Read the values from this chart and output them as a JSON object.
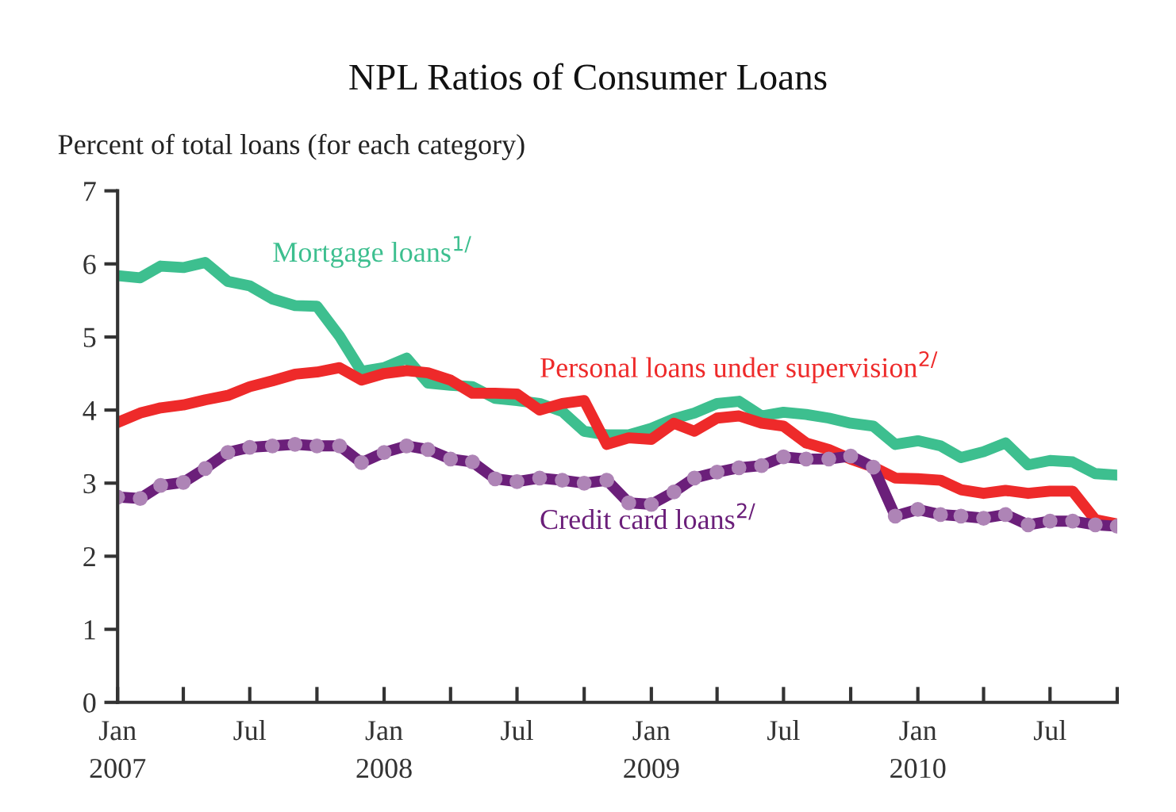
{
  "chart_data": {
    "type": "line",
    "title": "NPL Ratios of Consumer Loans",
    "ylabel": "Percent of total loans (for each category)",
    "x": [
      "2007-01",
      "2007-02",
      "2007-03",
      "2007-04",
      "2007-05",
      "2007-06",
      "2007-07",
      "2007-08",
      "2007-09",
      "2007-10",
      "2007-11",
      "2007-12",
      "2008-01",
      "2008-02",
      "2008-03",
      "2008-04",
      "2008-05",
      "2008-06",
      "2008-07",
      "2008-08",
      "2008-09",
      "2008-10",
      "2008-11",
      "2008-12",
      "2009-01",
      "2009-02",
      "2009-03",
      "2009-04",
      "2009-05",
      "2009-06",
      "2009-07",
      "2009-08",
      "2009-09",
      "2009-10",
      "2009-11",
      "2009-12",
      "2010-01",
      "2010-02",
      "2010-03",
      "2010-04",
      "2010-05",
      "2010-06",
      "2010-07",
      "2010-08",
      "2010-09",
      "2010-10"
    ],
    "series": [
      {
        "name": "Mortgage loans$^{1/}$",
        "color": "#3dbf8f",
        "marker": "none",
        "values": [
          5.84,
          5.81,
          5.97,
          5.95,
          6.02,
          5.76,
          5.7,
          5.52,
          5.43,
          5.42,
          5.01,
          4.53,
          4.58,
          4.71,
          4.37,
          4.34,
          4.32,
          4.16,
          4.13,
          4.09,
          3.98,
          3.71,
          3.66,
          3.66,
          3.75,
          3.88,
          3.96,
          4.09,
          4.12,
          3.92,
          3.97,
          3.94,
          3.89,
          3.82,
          3.78,
          3.53,
          3.58,
          3.51,
          3.35,
          3.43,
          3.55,
          3.25,
          3.31,
          3.29,
          3.13,
          3.11
        ]
      },
      {
        "name": "Personal loans under supervision$^{2/}$",
        "color": "#ee2a2a",
        "marker": "none",
        "values": [
          3.83,
          3.96,
          4.03,
          4.07,
          4.14,
          4.2,
          4.32,
          4.4,
          4.49,
          4.52,
          4.58,
          4.41,
          4.5,
          4.54,
          4.51,
          4.41,
          4.23,
          4.23,
          4.22,
          4.0,
          4.09,
          4.13,
          3.53,
          3.62,
          3.6,
          3.82,
          3.71,
          3.89,
          3.92,
          3.82,
          3.78,
          3.55,
          3.46,
          3.33,
          3.22,
          3.07,
          3.06,
          3.04,
          2.91,
          2.86,
          2.9,
          2.86,
          2.89,
          2.89,
          2.5,
          2.44
        ]
      },
      {
        "name": "Credit card loans$^{2/}$",
        "color": "#6b1f7a",
        "marker": "circle",
        "values": [
          2.81,
          2.79,
          2.97,
          3.01,
          3.2,
          3.42,
          3.49,
          3.51,
          3.53,
          3.51,
          3.51,
          3.28,
          3.42,
          3.51,
          3.46,
          3.33,
          3.29,
          3.06,
          3.02,
          3.07,
          3.04,
          3.0,
          3.04,
          2.73,
          2.71,
          2.88,
          3.07,
          3.15,
          3.21,
          3.24,
          3.36,
          3.33,
          3.33,
          3.37,
          3.22,
          2.55,
          2.64,
          2.57,
          2.55,
          2.52,
          2.57,
          2.43,
          2.48,
          2.48,
          2.43,
          2.41
        ]
      }
    ],
    "xlim": [
      "2007-01",
      "2010-10"
    ],
    "xticks": [
      {
        "value": "2007-01",
        "label": "Jan\n2007"
      },
      {
        "value": "2007-04",
        "label": null
      },
      {
        "value": "2007-07",
        "label": "Jul"
      },
      {
        "value": "2007-10",
        "label": null
      },
      {
        "value": "2008-01",
        "label": "Jan\n2008"
      },
      {
        "value": "2008-04",
        "label": null
      },
      {
        "value": "2008-07",
        "label": "Jul"
      },
      {
        "value": "2008-10",
        "label": null
      },
      {
        "value": "2009-01",
        "label": "Jan\n2009"
      },
      {
        "value": "2009-04",
        "label": null
      },
      {
        "value": "2009-07",
        "label": "Jul"
      },
      {
        "value": "2009-10",
        "label": null
      },
      {
        "value": "2010-01",
        "label": "Jan\n2010"
      },
      {
        "value": "2010-04",
        "label": null
      },
      {
        "value": "2010-07",
        "label": "Jul"
      },
      {
        "value": "2010-10",
        "label": null
      }
    ],
    "ylim": [
      0,
      7
    ],
    "yticks": [
      0,
      1,
      2,
      3,
      4,
      5,
      6,
      7
    ],
    "grid": false,
    "legend": false
  }
}
